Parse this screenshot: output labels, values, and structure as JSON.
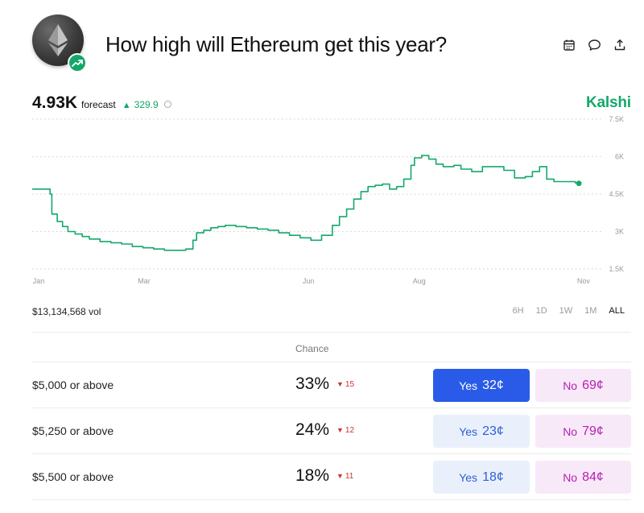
{
  "header": {
    "title": "How high will Ethereum get this year?",
    "icons": [
      "calendar-icon",
      "comment-icon",
      "share-icon"
    ]
  },
  "forecast": {
    "value": "4.93K",
    "label": "forecast",
    "change": "329.9",
    "change_direction": "up"
  },
  "brand": "Kalshi",
  "colors": {
    "accent": "#13a86b",
    "yes_active": "#2a5be8",
    "yes": "#2b5fd9",
    "no": "#b51fb0",
    "down": "#d0342c"
  },
  "chart_data": {
    "type": "line",
    "ytick_labels": [
      "7.5K",
      "6K",
      "4.5K",
      "3K",
      "1.5K"
    ],
    "yticks": [
      7500,
      6000,
      4500,
      3000,
      1500
    ],
    "ylim": [
      1500,
      7500
    ],
    "xtick_labels": [
      "Jan",
      "Mar",
      "Jun",
      "Aug",
      "Nov"
    ],
    "xticks": [
      0,
      59,
      151,
      213,
      305
    ],
    "xlim": [
      0,
      310
    ],
    "grid": true,
    "series": [
      {
        "x": [
          0,
          8,
          10,
          11,
          14,
          17,
          20,
          24,
          28,
          32,
          38,
          44,
          50,
          56,
          62,
          68,
          74,
          80,
          86,
          90,
          92,
          96,
          100,
          104,
          108,
          114,
          120,
          126,
          132,
          138,
          144,
          150,
          156,
          162,
          168,
          172,
          176,
          180,
          184,
          188,
          192,
          196,
          200,
          204,
          208,
          212,
          214,
          218,
          222,
          226,
          230,
          236,
          240,
          246,
          252,
          258,
          264,
          270,
          276,
          280,
          284,
          288,
          292,
          298,
          304,
          306
        ],
        "values": [
          4700,
          4700,
          4500,
          3700,
          3400,
          3200,
          3000,
          2900,
          2800,
          2700,
          2600,
          2550,
          2500,
          2400,
          2350,
          2300,
          2250,
          2250,
          2300,
          2650,
          2950,
          3050,
          3150,
          3200,
          3250,
          3200,
          3150,
          3100,
          3050,
          2950,
          2850,
          2750,
          2650,
          2850,
          3250,
          3600,
          3900,
          4300,
          4600,
          4800,
          4850,
          4900,
          4700,
          4800,
          5100,
          5650,
          5950,
          6050,
          5900,
          5700,
          5600,
          5650,
          5500,
          5400,
          5600,
          5600,
          5450,
          5150,
          5200,
          5400,
          5600,
          5100,
          5000,
          5000,
          4950,
          4930
        ]
      }
    ]
  },
  "volume": "$13,134,568 vol",
  "ranges": [
    {
      "label": "6H",
      "active": false
    },
    {
      "label": "1D",
      "active": false
    },
    {
      "label": "1W",
      "active": false
    },
    {
      "label": "1M",
      "active": false
    },
    {
      "label": "ALL",
      "active": true
    }
  ],
  "table": {
    "chance_header": "Chance",
    "rows": [
      {
        "label": "$5,000 or above",
        "chance": "33%",
        "delta": "15",
        "yes_label": "Yes",
        "yes_price": "32¢",
        "no_label": "No",
        "no_price": "69¢",
        "yes_active": true
      },
      {
        "label": "$5,250 or above",
        "chance": "24%",
        "delta": "12",
        "yes_label": "Yes",
        "yes_price": "23¢",
        "no_label": "No",
        "no_price": "79¢",
        "yes_active": false
      },
      {
        "label": "$5,500 or above",
        "chance": "18%",
        "delta": "11",
        "yes_label": "Yes",
        "yes_price": "18¢",
        "no_label": "No",
        "no_price": "84¢",
        "yes_active": false
      }
    ]
  }
}
